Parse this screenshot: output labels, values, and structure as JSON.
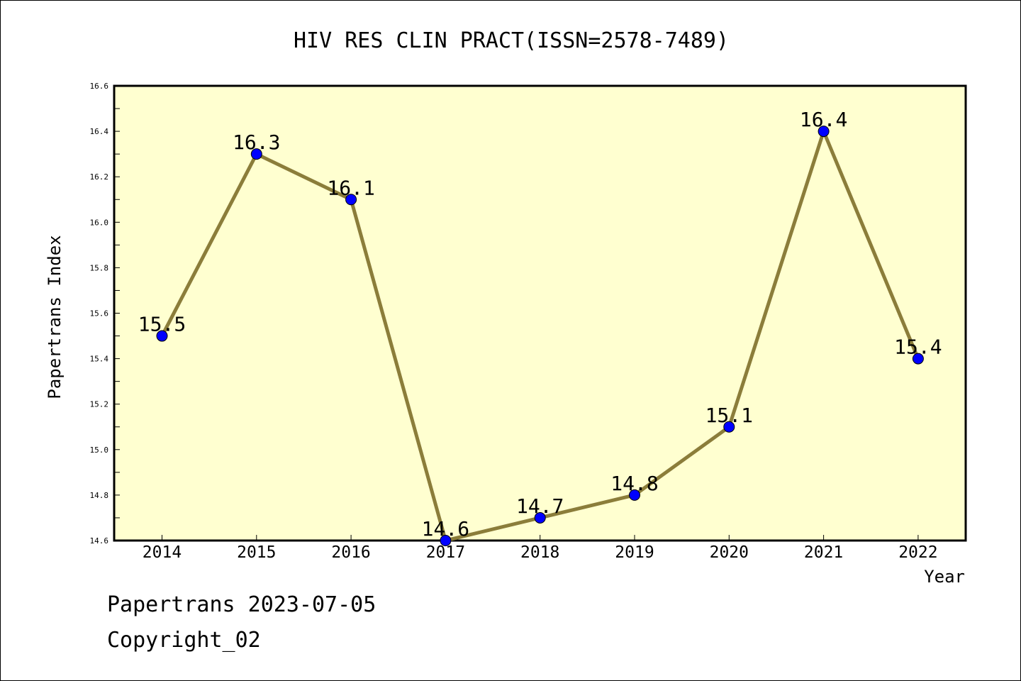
{
  "chart_data": {
    "type": "line",
    "title": "HIV RES CLIN PRACT(ISSN=2578-7489)",
    "xlabel": "Year",
    "ylabel": "Papertrans Index",
    "categories": [
      "2014",
      "2015",
      "2016",
      "2017",
      "2018",
      "2019",
      "2020",
      "2021",
      "2022"
    ],
    "values": [
      15.5,
      16.3,
      16.1,
      14.6,
      14.7,
      14.8,
      15.1,
      16.4,
      15.4
    ],
    "data_labels": [
      "15.5",
      "16.3",
      "16.1",
      "14.6",
      "14.7",
      "14.8",
      "15.1",
      "16.4",
      "15.4"
    ],
    "ylim": [
      14.6,
      16.6
    ],
    "yticks": [
      "14.6",
      "14.8",
      "15.0",
      "15.2",
      "15.4",
      "15.6",
      "15.8",
      "16.0",
      "16.2",
      "16.4",
      "16.6"
    ],
    "grid": false,
    "legend": "none"
  },
  "colors": {
    "plot_background": "#ffffd0",
    "line": "#8b7d3a",
    "marker": "#0000ff"
  },
  "footer": {
    "line1": "Papertrans 2023-07-05",
    "line2": "Copyright_02"
  }
}
